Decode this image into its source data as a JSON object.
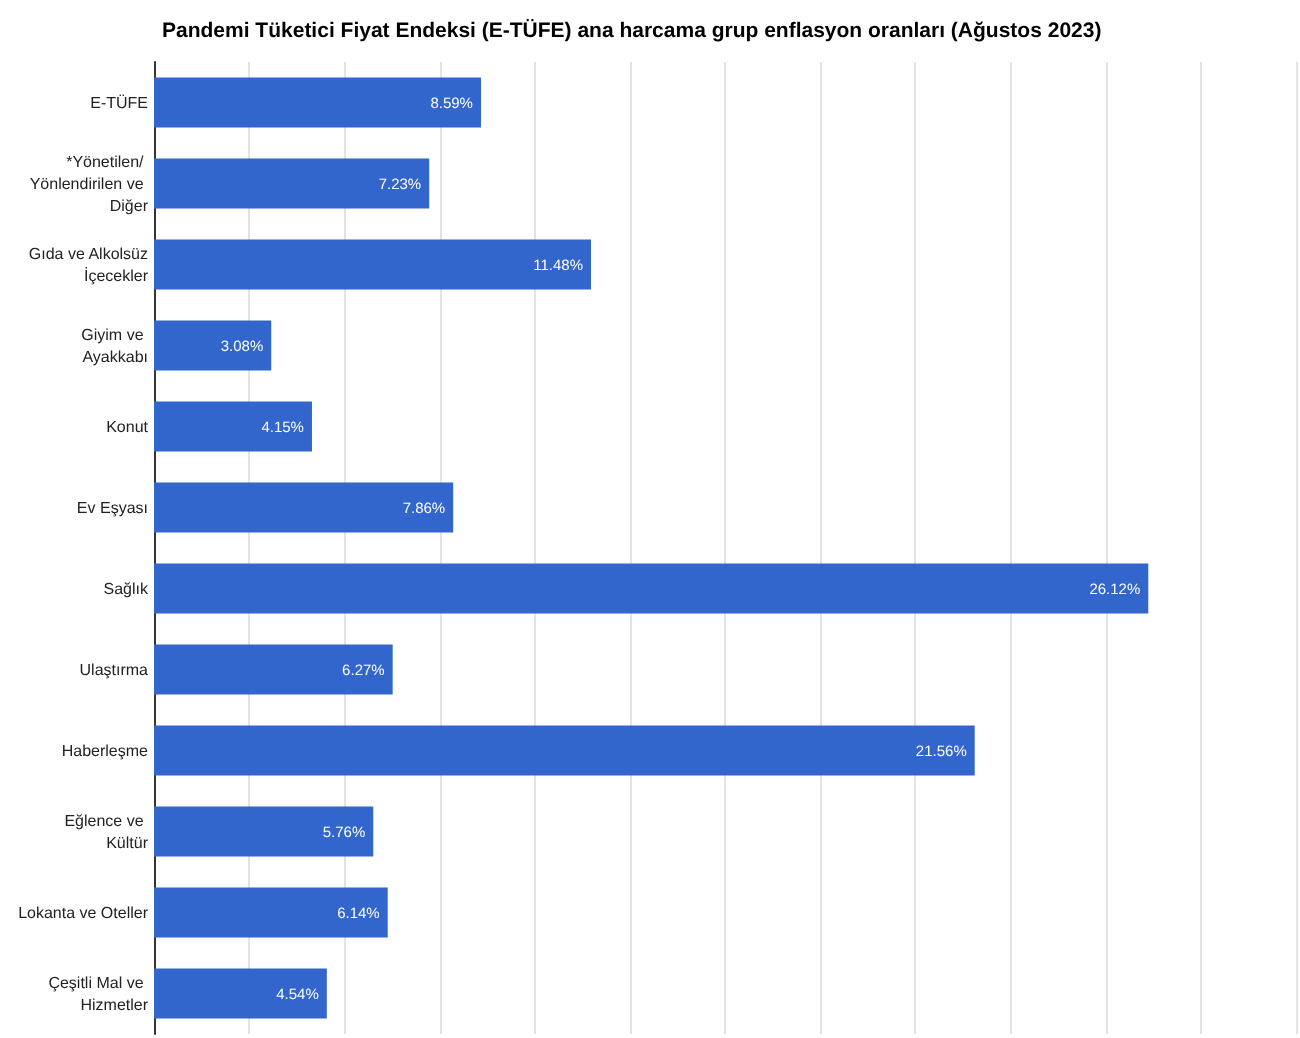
{
  "chart_data": {
    "type": "bar",
    "orientation": "horizontal",
    "title": "Pandemi Tüketici Fiyat Endeksi (E-TÜFE) ana harcama grup enflasyon oranları (Ağustos 2023)",
    "categories": [
      "E-TÜFE",
      "*Yönetilen/ Yönlendirilen ve Diğer",
      "Gıda ve Alkolsüz İçecekler",
      "Giyim ve Ayakkabı",
      "Konut",
      "Ev Eşyası",
      "Sağlık",
      "Ulaştırma",
      "Haberleşme",
      "Eğlence ve Kültür",
      "Lokanta ve Oteller",
      "Çeşitli Mal ve Hizmetler"
    ],
    "values": [
      8.59,
      7.23,
      11.48,
      3.08,
      4.15,
      7.86,
      26.12,
      6.27,
      21.56,
      5.76,
      6.14,
      4.54
    ],
    "value_labels": [
      "8.59%",
      "7.23%",
      "11.48%",
      "3.08%",
      "4.15%",
      "7.86%",
      "26.12%",
      "6.27%",
      "21.56%",
      "5.76%",
      "6.14%",
      "4.54%"
    ],
    "color": "#3366cc",
    "xlim": [
      0,
      30
    ],
    "xticks": [
      {
        "value": 0,
        "label": null
      },
      {
        "value": 2.5,
        "label": null
      },
      {
        "value": 5,
        "label": null
      },
      {
        "value": 7.5,
        "label": null
      },
      {
        "value": 10,
        "label": null
      },
      {
        "value": 12.5,
        "label": null
      },
      {
        "value": 15,
        "label": null
      },
      {
        "value": 17.5,
        "label": null
      },
      {
        "value": 20,
        "label": null
      },
      {
        "value": 22.5,
        "label": null
      },
      {
        "value": 25,
        "label": null
      },
      {
        "value": 27.5,
        "label": null
      },
      {
        "value": 30,
        "label": null
      }
    ],
    "grid": "x",
    "tick_labels": "y"
  }
}
